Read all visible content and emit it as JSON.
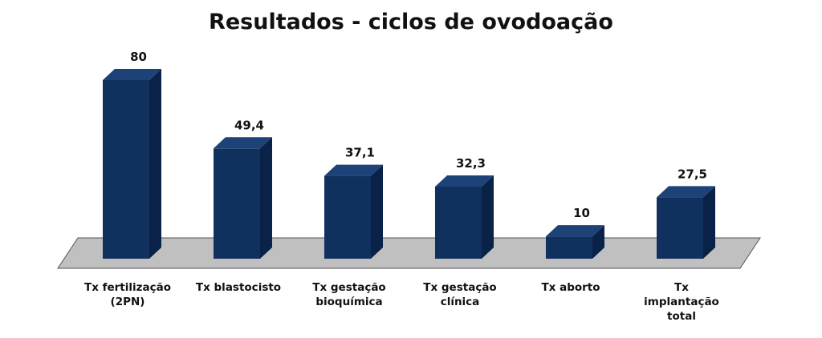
{
  "chart_data": {
    "type": "bar",
    "title": "Resultados - ciclos de ovodoação",
    "categories": [
      [
        "Tx fertilização",
        "(2PN)"
      ],
      [
        "Tx blastocisto"
      ],
      [
        "Tx gestação",
        "bioquímica"
      ],
      [
        "Tx gestação",
        "clínica"
      ],
      [
        "Tx aborto"
      ],
      [
        "Tx",
        "implantação",
        "total"
      ]
    ],
    "values": [
      80,
      49.4,
      37.1,
      32.3,
      10,
      27.5
    ],
    "value_labels": [
      "80",
      "49,4",
      "37,1",
      "32,3",
      "10",
      "27,5"
    ],
    "ylim": [
      0,
      80
    ],
    "grid": false,
    "legend": "none",
    "colors": {
      "bar_front": "#10305e",
      "bar_side": "#0a2148",
      "bar_top": "#1d4278",
      "floor": "#c0c0c0",
      "floor_stroke": "#555555"
    }
  }
}
